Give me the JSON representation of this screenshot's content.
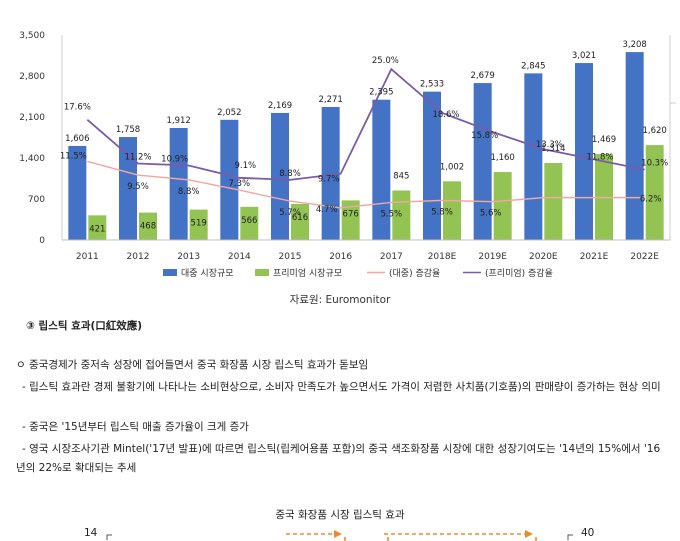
{
  "chart_data": {
    "type": "bar",
    "categories": [
      "2011",
      "2012",
      "2013",
      "2014",
      "2015",
      "2016",
      "2017",
      "2018E",
      "2019E",
      "2020E",
      "2021E",
      "2022E"
    ],
    "series": [
      {
        "name": "대중 시장규모",
        "kind": "bar",
        "color": "#4472C4",
        "values": [
          1606,
          1758,
          1912,
          2052,
          2169,
          2271,
          2395,
          2533,
          2679,
          2845,
          3021,
          3208
        ],
        "labels": [
          "1,606",
          "1,758",
          "1,912",
          "2,052",
          "2,169",
          "2,271",
          "2,395",
          "2,533",
          "2,679",
          "2,845",
          "3,021",
          "3,208"
        ]
      },
      {
        "name": "프리미엄 시장규모",
        "kind": "bar",
        "color": "#92C353",
        "values": [
          421,
          468,
          519,
          566,
          616,
          676,
          845,
          1002,
          1160,
          1314,
          1469,
          1620
        ],
        "labels": [
          "421",
          "468",
          "519",
          "566",
          "616",
          "676",
          "845",
          "1,002",
          "1,160",
          "1,314",
          "1,469",
          "1,620"
        ]
      },
      {
        "name": "(대중) 증감율",
        "kind": "line",
        "color": "#F2A7A0",
        "values": [
          11.5,
          9.5,
          8.8,
          7.3,
          5.7,
          4.7,
          5.5,
          5.8,
          5.6,
          6.2,
          6.2,
          6.2
        ],
        "labels": [
          "11.5%",
          "9.5%",
          "8.8%",
          "7.3%",
          "5.7%",
          "4.7%",
          "5.5%",
          "5.8%",
          "5.6%",
          "",
          "",
          "6.2%"
        ]
      },
      {
        "name": "(프리미엄) 증감율",
        "kind": "line",
        "color": "#7B5BA8",
        "values": [
          17.6,
          11.2,
          10.9,
          9.1,
          8.8,
          9.7,
          25.0,
          18.6,
          15.8,
          13.3,
          11.8,
          10.3
        ],
        "labels": [
          "17.6%",
          "11.2%",
          "10.9%",
          "9.1%",
          "8.8%",
          "9.7%",
          "25.0%",
          "18.6%",
          "15.8%",
          "13.3%",
          "11.8%",
          "10.3%"
        ]
      }
    ],
    "y_ticks": [
      "0",
      "700",
      "1,400",
      "2,100",
      "2,800",
      "3,500"
    ],
    "ylim": [
      0,
      3500
    ],
    "y2lim": [
      0,
      30
    ],
    "legend_position": "bottom",
    "grid": false
  },
  "source": "자료원: Euromonitor",
  "doc": {
    "heading": "③ 립스틱 효과(口紅效應)",
    "p1": "ㅇ 중국경제가 중저속 성장에 접어들면서 중국 화장품 시장 립스틱 효과가 돋보임",
    "p2": "- 립스틱 효과란 경제 불황기에 나타나는 소비현상으로, 소비자 만족도가 높으면서도 가격이 저렴한 사치품(기호품)의 판매량이 증가하는 현상 의미",
    "p3": "- 중국은 '15년부터 립스틱 매출 증가율이 크게 증가",
    "p4": "- 영국 시장조사기관 Mintel('17년 발표)에 따르면 립스틱(립케어용품 포함)의 중국 색조화장품 시장에 대한 성장기여도는 '14년의 15%에서 '16년의 22%로 확대되는 추세"
  },
  "chart2": {
    "title": "중국 화장품 시장 립스틱 효과",
    "left_tick": "14",
    "right_tick": "40"
  }
}
